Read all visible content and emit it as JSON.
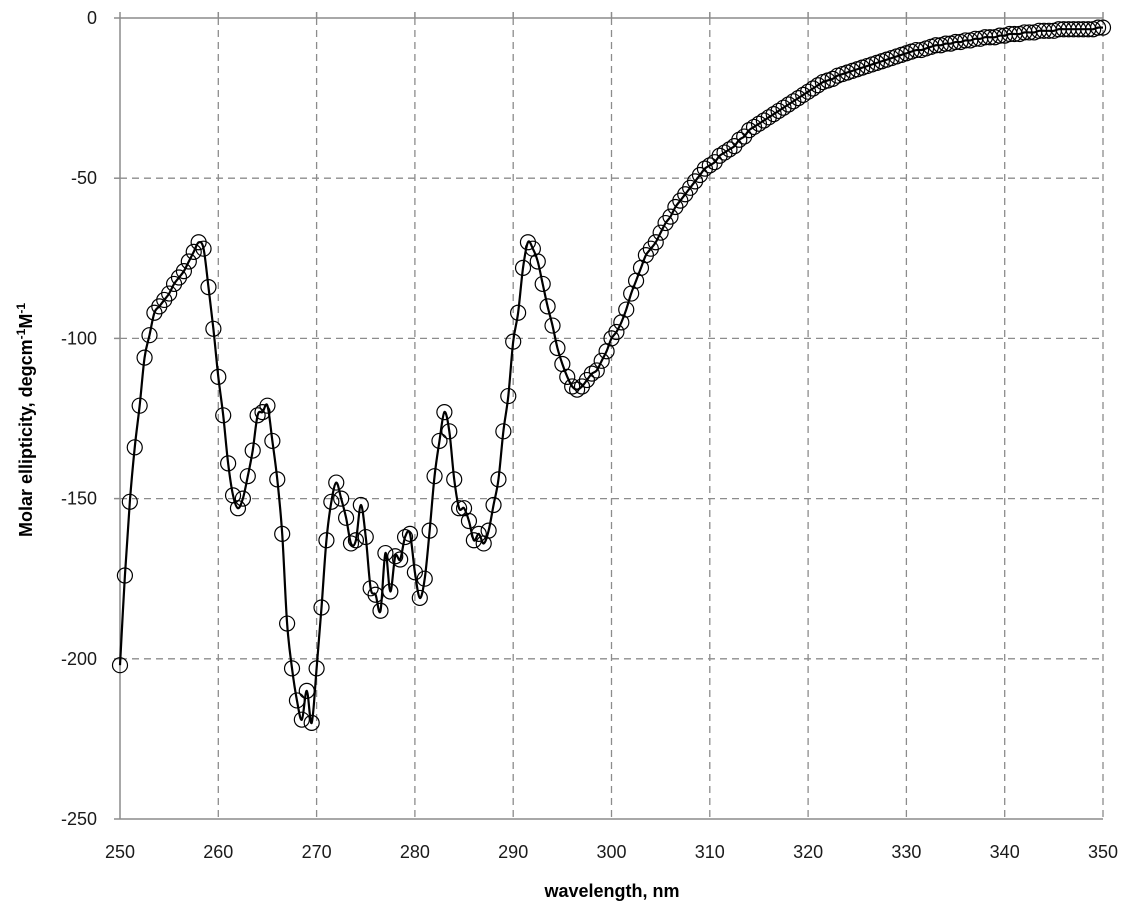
{
  "chart_data": {
    "type": "line",
    "title": "",
    "xlabel": "wavelength, nm",
    "ylabel": {
      "text": "Molar ellipticity, degcm",
      "sup1": "-1",
      "mid": "M",
      "sup2": "-1"
    },
    "xlim": [
      250,
      350
    ],
    "ylim": [
      -250,
      0
    ],
    "xticks": [
      250,
      260,
      270,
      280,
      290,
      300,
      310,
      320,
      330,
      340,
      350
    ],
    "yticks": [
      0,
      -50,
      -100,
      -150,
      -200,
      -250
    ],
    "grid": true,
    "legend": "none",
    "colors": {
      "line": "#000000",
      "marker_edge": "#000000",
      "grid": "#8c8c8c"
    },
    "series": [
      {
        "marker": "open-circle",
        "points": [
          [
            250.0,
            -202
          ],
          [
            250.5,
            -174
          ],
          [
            251.0,
            -151
          ],
          [
            251.5,
            -134
          ],
          [
            252.0,
            -121
          ],
          [
            252.5,
            -106
          ],
          [
            253.0,
            -99
          ],
          [
            253.5,
            -92
          ],
          [
            254.0,
            -90
          ],
          [
            254.5,
            -88
          ],
          [
            255.0,
            -86
          ],
          [
            255.5,
            -83
          ],
          [
            256.0,
            -81
          ],
          [
            256.5,
            -79
          ],
          [
            257.0,
            -76
          ],
          [
            257.5,
            -73
          ],
          [
            258.0,
            -70
          ],
          [
            258.5,
            -72
          ],
          [
            259.0,
            -84
          ],
          [
            259.5,
            -97
          ],
          [
            260.0,
            -112
          ],
          [
            260.5,
            -124
          ],
          [
            261.0,
            -139
          ],
          [
            261.5,
            -149
          ],
          [
            262.0,
            -153
          ],
          [
            262.5,
            -150
          ],
          [
            263.0,
            -143
          ],
          [
            263.5,
            -135
          ],
          [
            264.0,
            -124
          ],
          [
            264.5,
            -123
          ],
          [
            265.0,
            -121
          ],
          [
            265.5,
            -132
          ],
          [
            266.0,
            -144
          ],
          [
            266.5,
            -161
          ],
          [
            267.0,
            -189
          ],
          [
            267.5,
            -203
          ],
          [
            268.0,
            -213
          ],
          [
            268.5,
            -219
          ],
          [
            269.0,
            -210
          ],
          [
            269.5,
            -220
          ],
          [
            270.0,
            -203
          ],
          [
            270.5,
            -184
          ],
          [
            271.0,
            -163
          ],
          [
            271.5,
            -151
          ],
          [
            272.0,
            -145
          ],
          [
            272.5,
            -150
          ],
          [
            273.0,
            -156
          ],
          [
            273.5,
            -164
          ],
          [
            274.0,
            -163
          ],
          [
            274.5,
            -152
          ],
          [
            275.0,
            -162
          ],
          [
            275.5,
            -178
          ],
          [
            276.0,
            -180
          ],
          [
            276.5,
            -185
          ],
          [
            277.0,
            -167
          ],
          [
            277.5,
            -179
          ],
          [
            278.0,
            -168
          ],
          [
            278.5,
            -169
          ],
          [
            279.0,
            -162
          ],
          [
            279.5,
            -161
          ],
          [
            280.0,
            -173
          ],
          [
            280.5,
            -181
          ],
          [
            281.0,
            -175
          ],
          [
            281.5,
            -160
          ],
          [
            282.0,
            -143
          ],
          [
            282.5,
            -132
          ],
          [
            283.0,
            -123
          ],
          [
            283.5,
            -129
          ],
          [
            284.0,
            -144
          ],
          [
            284.5,
            -153
          ],
          [
            285.0,
            -153
          ],
          [
            285.5,
            -157
          ],
          [
            286.0,
            -163
          ],
          [
            286.5,
            -161
          ],
          [
            287.0,
            -164
          ],
          [
            287.5,
            -160
          ],
          [
            288.0,
            -152
          ],
          [
            288.5,
            -144
          ],
          [
            289.0,
            -129
          ],
          [
            289.5,
            -118
          ],
          [
            290.0,
            -101
          ],
          [
            290.5,
            -92
          ],
          [
            291.0,
            -78
          ],
          [
            291.5,
            -70
          ],
          [
            292.0,
            -72
          ],
          [
            292.5,
            -76
          ],
          [
            293.0,
            -83
          ],
          [
            293.5,
            -90
          ],
          [
            294.0,
            -96
          ],
          [
            294.5,
            -103
          ],
          [
            295.0,
            -108
          ],
          [
            295.5,
            -112
          ],
          [
            296.0,
            -115
          ],
          [
            296.5,
            -116
          ],
          [
            297.0,
            -115
          ],
          [
            297.5,
            -113
          ],
          [
            298.0,
            -111
          ],
          [
            298.5,
            -110
          ],
          [
            299.0,
            -107
          ],
          [
            299.5,
            -104
          ],
          [
            300.0,
            -100
          ],
          [
            300.5,
            -98
          ],
          [
            301.0,
            -95
          ],
          [
            301.5,
            -91
          ],
          [
            302.0,
            -86
          ],
          [
            302.5,
            -82
          ],
          [
            303.0,
            -78
          ],
          [
            303.5,
            -74
          ],
          [
            304.0,
            -72
          ],
          [
            304.5,
            -70
          ],
          [
            305.0,
            -67
          ],
          [
            305.5,
            -64
          ],
          [
            306.0,
            -62
          ],
          [
            306.5,
            -59
          ],
          [
            307.0,
            -57
          ],
          [
            307.5,
            -55
          ],
          [
            308.0,
            -53
          ],
          [
            308.5,
            -51
          ],
          [
            309.0,
            -49
          ],
          [
            309.5,
            -47
          ],
          [
            310.0,
            -46
          ],
          [
            310.5,
            -45
          ],
          [
            311.0,
            -43
          ],
          [
            311.5,
            -42
          ],
          [
            312.0,
            -41
          ],
          [
            312.5,
            -40
          ],
          [
            313.0,
            -38
          ],
          [
            313.5,
            -37
          ],
          [
            314.0,
            -35
          ],
          [
            314.5,
            -34
          ],
          [
            315.0,
            -33
          ],
          [
            315.5,
            -32
          ],
          [
            316.0,
            -31
          ],
          [
            316.5,
            -30
          ],
          [
            317.0,
            -29
          ],
          [
            317.5,
            -28
          ],
          [
            318.0,
            -27
          ],
          [
            318.5,
            -26
          ],
          [
            319.0,
            -25
          ],
          [
            319.5,
            -24
          ],
          [
            320.0,
            -23
          ],
          [
            320.5,
            -22
          ],
          [
            321.0,
            -21
          ],
          [
            321.5,
            -20
          ],
          [
            322.0,
            -19.5
          ],
          [
            322.5,
            -19
          ],
          [
            323.0,
            -18
          ],
          [
            323.5,
            -17.5
          ],
          [
            324.0,
            -17
          ],
          [
            324.5,
            -16.5
          ],
          [
            325.0,
            -16
          ],
          [
            325.5,
            -15.5
          ],
          [
            326.0,
            -15
          ],
          [
            326.5,
            -14.5
          ],
          [
            327.0,
            -14
          ],
          [
            327.5,
            -13.5
          ],
          [
            328.0,
            -13
          ],
          [
            328.5,
            -12.5
          ],
          [
            329.0,
            -12
          ],
          [
            329.5,
            -11.5
          ],
          [
            330.0,
            -11
          ],
          [
            330.5,
            -10.5
          ],
          [
            331.0,
            -10
          ],
          [
            331.5,
            -10
          ],
          [
            332.0,
            -9.5
          ],
          [
            332.5,
            -9
          ],
          [
            333.0,
            -8.5
          ],
          [
            333.5,
            -8.5
          ],
          [
            334.0,
            -8
          ],
          [
            334.5,
            -8
          ],
          [
            335.0,
            -7.5
          ],
          [
            335.5,
            -7.5
          ],
          [
            336.0,
            -7
          ],
          [
            336.5,
            -7
          ],
          [
            337.0,
            -6.5
          ],
          [
            337.5,
            -6.5
          ],
          [
            338.0,
            -6
          ],
          [
            338.5,
            -6
          ],
          [
            339.0,
            -6
          ],
          [
            339.5,
            -5.5
          ],
          [
            340.0,
            -5.5
          ],
          [
            340.5,
            -5
          ],
          [
            341.0,
            -5
          ],
          [
            341.5,
            -5
          ],
          [
            342.0,
            -4.5
          ],
          [
            342.5,
            -4.5
          ],
          [
            343.0,
            -4.5
          ],
          [
            343.5,
            -4
          ],
          [
            344.0,
            -4
          ],
          [
            344.5,
            -4
          ],
          [
            345.0,
            -4
          ],
          [
            345.5,
            -3.5
          ],
          [
            346.0,
            -3.5
          ],
          [
            346.5,
            -3.5
          ],
          [
            347.0,
            -3.5
          ],
          [
            347.5,
            -3.5
          ],
          [
            348.0,
            -3.5
          ],
          [
            348.5,
            -3.5
          ],
          [
            349.0,
            -3.5
          ],
          [
            349.5,
            -3
          ],
          [
            350.0,
            -3
          ]
        ]
      }
    ]
  }
}
